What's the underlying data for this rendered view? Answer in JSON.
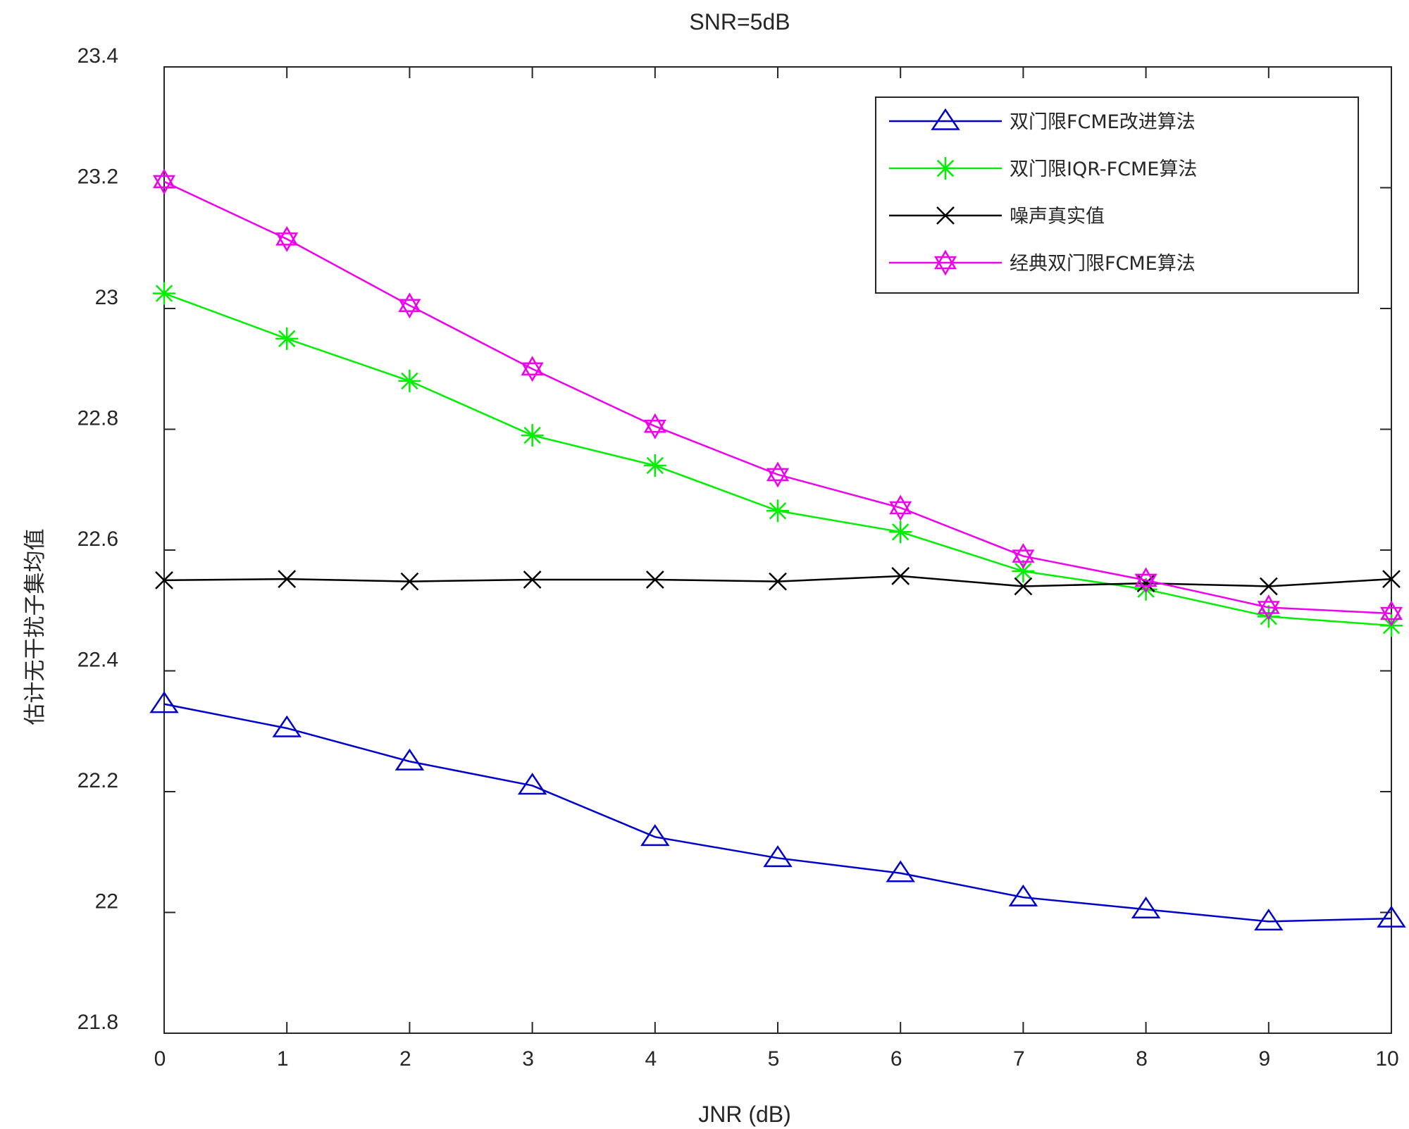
{
  "chart_data": {
    "type": "line",
    "title": "SNR=5dB",
    "xlabel": "JNR (dB)",
    "ylabel": "估计无干扰子集均值",
    "xlim": [
      0,
      10
    ],
    "ylim": [
      21.8,
      23.4
    ],
    "x": [
      0,
      1,
      2,
      3,
      4,
      5,
      6,
      7,
      8,
      9,
      10
    ],
    "x_ticks": [
      "0",
      "1",
      "2",
      "3",
      "4",
      "5",
      "6",
      "7",
      "8",
      "9",
      "10"
    ],
    "y_ticks": [
      {
        "value": 21.8,
        "label": "21.8"
      },
      {
        "value": 22.0,
        "label": "22"
      },
      {
        "value": 22.2,
        "label": "22.2"
      },
      {
        "value": 22.4,
        "label": "22.4"
      },
      {
        "value": 22.6,
        "label": "22.6"
      },
      {
        "value": 22.8,
        "label": "22.8"
      },
      {
        "value": 23.0,
        "label": "23"
      },
      {
        "value": 23.2,
        "label": "23.2"
      },
      {
        "value": 23.4,
        "label": "23.4"
      }
    ],
    "grid": false,
    "legend_position": "top-right",
    "series": [
      {
        "name": "双门限FCME改进算法",
        "color": "#0000cd",
        "marker": "triangle",
        "values": [
          22.345,
          22.305,
          22.25,
          22.21,
          22.125,
          22.09,
          22.065,
          22.025,
          22.005,
          21.985,
          21.99
        ]
      },
      {
        "name": "双门限IQR-FCME算法",
        "color": "#00ee00",
        "marker": "asterisk",
        "values": [
          23.025,
          22.95,
          22.88,
          22.79,
          22.74,
          22.665,
          22.63,
          22.565,
          22.535,
          22.49,
          22.475
        ]
      },
      {
        "name": "噪声真实值",
        "color": "#000000",
        "marker": "x",
        "values": [
          22.55,
          22.552,
          22.548,
          22.551,
          22.551,
          22.548,
          22.557,
          22.54,
          22.545,
          22.54,
          22.552
        ]
      },
      {
        "name": "经典双门限FCME算法",
        "color": "#ee00ee",
        "marker": "hexagram",
        "values": [
          23.21,
          23.115,
          23.005,
          22.9,
          22.805,
          22.725,
          22.67,
          22.59,
          22.55,
          22.505,
          22.495
        ]
      }
    ]
  }
}
